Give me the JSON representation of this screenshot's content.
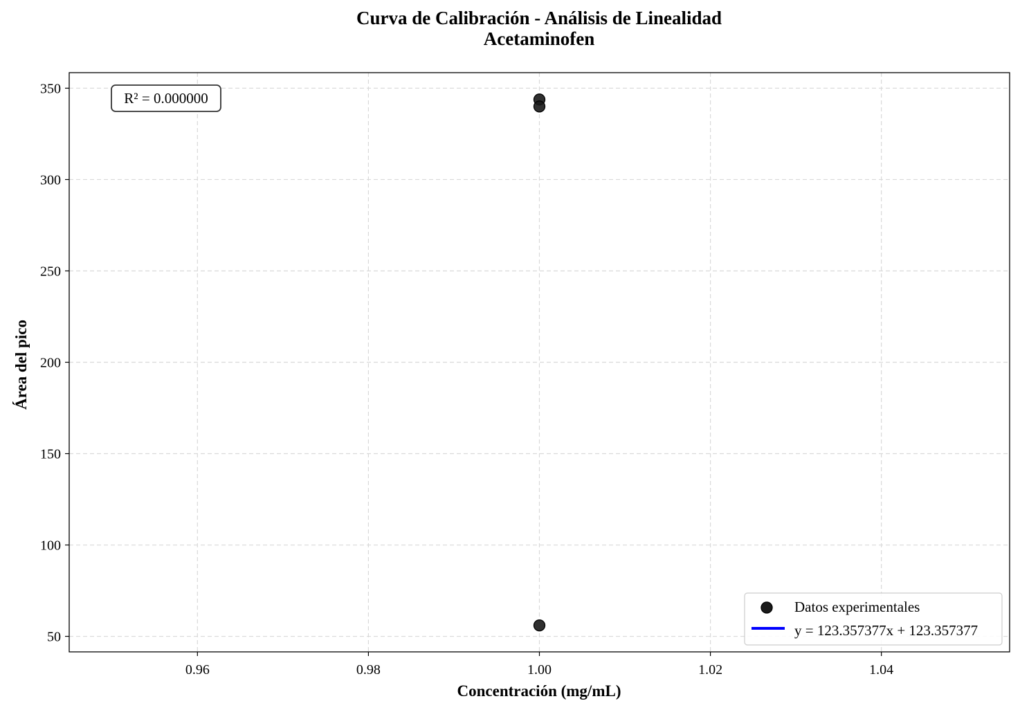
{
  "chart_data": {
    "type": "scatter",
    "title": "Curva de Calibración - Análisis de Linealidad",
    "subtitle": "Acetaminofen",
    "xlabel": "Concentración (mg/mL)",
    "ylabel": "Área del pico",
    "xlim": [
      0.945,
      1.055
    ],
    "ylim": [
      41.5,
      358.5
    ],
    "x_ticks": [
      0.96,
      0.98,
      1.0,
      1.02,
      1.04
    ],
    "x_tick_labels": [
      "0.96",
      "0.98",
      "1.00",
      "1.02",
      "1.04"
    ],
    "y_ticks": [
      50,
      100,
      150,
      200,
      250,
      300,
      350
    ],
    "y_tick_labels": [
      "50",
      "100",
      "150",
      "200",
      "250",
      "300",
      "350"
    ],
    "grid": true,
    "legend_position": "lower-right",
    "series": [
      {
        "name": "Datos experimentales",
        "kind": "scatter",
        "color": "#1a1a1a",
        "points": [
          {
            "x": 1.0,
            "y": 343.8
          },
          {
            "x": 1.0,
            "y": 340.0
          },
          {
            "x": 1.0,
            "y": 56.0
          }
        ]
      },
      {
        "name": "y = 123.357377x + 123.357377",
        "kind": "line",
        "color": "#0000ff",
        "slope": 123.357377,
        "intercept": 123.357377
      }
    ],
    "annotation": "R² = 0.000000"
  }
}
